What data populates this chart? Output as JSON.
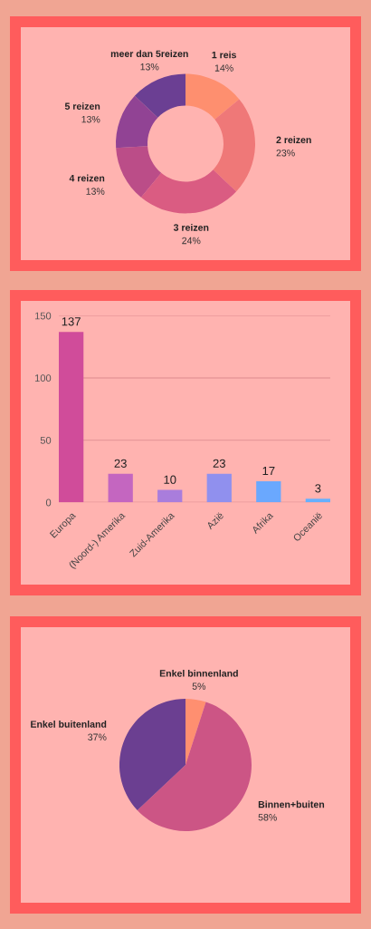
{
  "chart_data": [
    {
      "type": "donut",
      "categories": [
        "1 reis",
        "2 reizen",
        "3 reizen",
        "4 reizen",
        "5 reizen",
        "meer dan 5reizen"
      ],
      "values": [
        14,
        23,
        24,
        13,
        13,
        13
      ],
      "colors": [
        "#fe8f6f",
        "#ef7878",
        "#da5c82",
        "#bb4d88",
        "#914394",
        "#6b3f93"
      ],
      "value_labels": [
        "14%",
        "23%",
        "24%",
        "13%",
        "13%",
        "13%"
      ]
    },
    {
      "type": "bar",
      "categories": [
        "Europa",
        "(Noord-) Amerika",
        "Zuid-Amerika",
        "Azië",
        "Afrika",
        "Oceanië"
      ],
      "values": [
        137,
        23,
        10,
        23,
        17,
        3
      ],
      "colors": [
        "#d04c9a",
        "#c466c0",
        "#a97ddc",
        "#9090ee",
        "#6aa8fe",
        "#66b0ff"
      ],
      "ylim": [
        0,
        150
      ],
      "yticks": [
        0,
        50,
        100,
        150
      ],
      "grid": "y",
      "data_labels": true
    },
    {
      "type": "pie",
      "categories": [
        "Enkel binnenland",
        "Binnen+buiten",
        "Enkel buitenland"
      ],
      "values": [
        5,
        58,
        37
      ],
      "colors": [
        "#ff8f70",
        "#cc5585",
        "#6b3f91"
      ],
      "value_labels": [
        "5%",
        "58%",
        "37%"
      ]
    }
  ]
}
